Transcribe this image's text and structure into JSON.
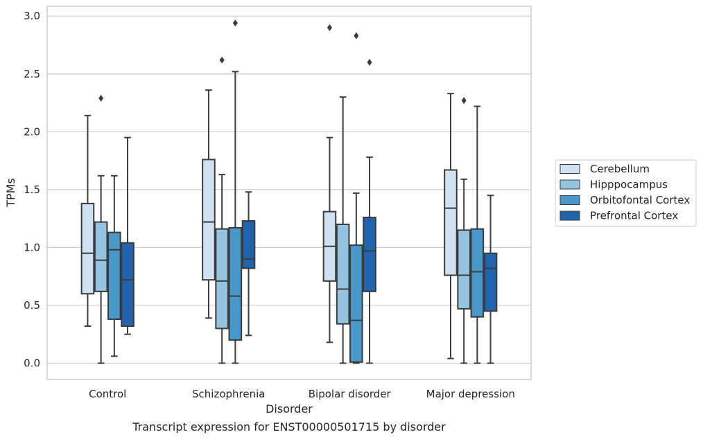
{
  "chart_data": {
    "type": "box",
    "title": "",
    "caption": "Transcript expression for ENST00000501715 by disorder",
    "xlabel": "Disorder",
    "ylabel": "TPMs",
    "ylim": [
      -0.14,
      3.08
    ],
    "yticks": [
      "0.0",
      "0.5",
      "1.0",
      "1.5",
      "2.0",
      "2.5",
      "3.0"
    ],
    "grid": "horizontal",
    "legend_placement": "right",
    "categories": [
      "Control",
      "Schizophrenia",
      "Bipolar disorder",
      "Major depression"
    ],
    "series": [
      {
        "name": "Cerebellum",
        "color": "#d0e1f2",
        "boxes": [
          {
            "whislo": 0.32,
            "q1": 0.6,
            "med": 0.95,
            "q3": 1.38,
            "whishi": 2.14,
            "fliers": []
          },
          {
            "whislo": 0.39,
            "q1": 0.72,
            "med": 1.22,
            "q3": 1.76,
            "whishi": 2.36,
            "fliers": []
          },
          {
            "whislo": 0.18,
            "q1": 0.71,
            "med": 1.01,
            "q3": 1.31,
            "whishi": 1.95,
            "fliers": [
              2.9
            ]
          },
          {
            "whislo": 0.04,
            "q1": 0.76,
            "med": 1.34,
            "q3": 1.67,
            "whishi": 2.33,
            "fliers": []
          }
        ]
      },
      {
        "name": "Hipppocampus",
        "color": "#94c4df",
        "boxes": [
          {
            "whislo": 0.0,
            "q1": 0.62,
            "med": 0.89,
            "q3": 1.22,
            "whishi": 1.62,
            "fliers": [
              2.29
            ]
          },
          {
            "whislo": 0.0,
            "q1": 0.3,
            "med": 0.71,
            "q3": 1.16,
            "whishi": 1.63,
            "fliers": [
              2.62
            ]
          },
          {
            "whislo": 0.0,
            "q1": 0.34,
            "med": 0.64,
            "q3": 1.2,
            "whishi": 2.3,
            "fliers": []
          },
          {
            "whislo": 0.0,
            "q1": 0.47,
            "med": 0.76,
            "q3": 1.15,
            "whishi": 1.59,
            "fliers": [
              2.27
            ]
          }
        ]
      },
      {
        "name": "Orbitofontal Cortex",
        "color": "#4a98c9",
        "boxes": [
          {
            "whislo": 0.06,
            "q1": 0.38,
            "med": 0.98,
            "q3": 1.13,
            "whishi": 1.62,
            "fliers": []
          },
          {
            "whislo": 0.0,
            "q1": 0.2,
            "med": 0.58,
            "q3": 1.17,
            "whishi": 2.52,
            "fliers": [
              2.94
            ]
          },
          {
            "whislo": 0.0,
            "q1": 0.01,
            "med": 0.37,
            "q3": 1.02,
            "whishi": 1.47,
            "fliers": [
              2.83
            ]
          },
          {
            "whislo": 0.0,
            "q1": 0.4,
            "med": 0.79,
            "q3": 1.16,
            "whishi": 2.22,
            "fliers": []
          }
        ]
      },
      {
        "name": "Prefrontal Cortex",
        "color": "#2164ab",
        "boxes": [
          {
            "whislo": 0.25,
            "q1": 0.32,
            "med": 0.72,
            "q3": 1.04,
            "whishi": 1.95,
            "fliers": []
          },
          {
            "whislo": 0.24,
            "q1": 0.82,
            "med": 0.9,
            "q3": 1.23,
            "whishi": 1.48,
            "fliers": []
          },
          {
            "whislo": 0.0,
            "q1": 0.62,
            "med": 0.97,
            "q3": 1.26,
            "whishi": 1.78,
            "fliers": [
              2.6
            ]
          },
          {
            "whislo": 0.0,
            "q1": 0.45,
            "med": 0.82,
            "q3": 0.95,
            "whishi": 1.45,
            "fliers": []
          }
        ]
      }
    ]
  }
}
